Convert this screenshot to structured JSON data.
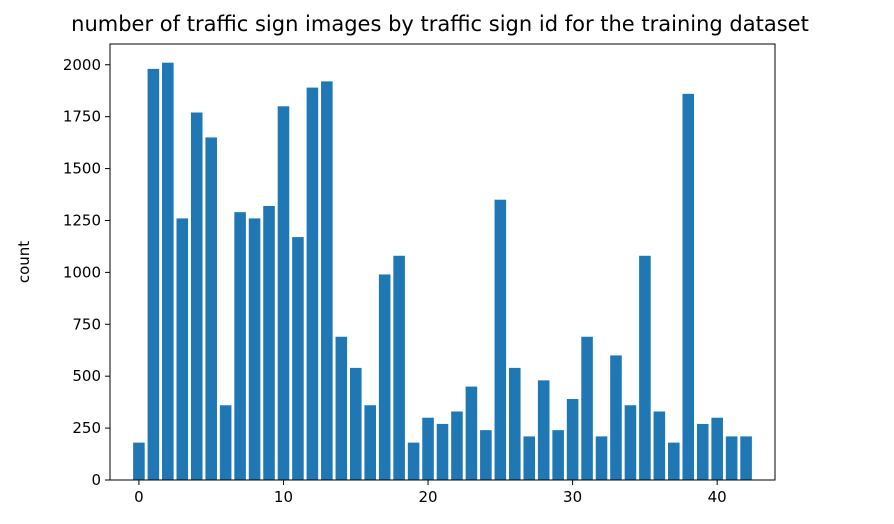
{
  "chart_data": {
    "type": "bar",
    "title": "number of traffic sign images by traffic sign id for the training dataset",
    "xlabel": "",
    "ylabel": "count",
    "xlim": [
      -2,
      44
    ],
    "ylim": [
      0,
      2100
    ],
    "xticks": [
      0,
      10,
      20,
      30,
      40
    ],
    "yticks": [
      0,
      250,
      500,
      750,
      1000,
      1250,
      1500,
      1750,
      2000
    ],
    "grid": false,
    "bar_color": "#1f77b4",
    "categories": [
      0,
      1,
      2,
      3,
      4,
      5,
      6,
      7,
      8,
      9,
      10,
      11,
      12,
      13,
      14,
      15,
      16,
      17,
      18,
      19,
      20,
      21,
      22,
      23,
      24,
      25,
      26,
      27,
      28,
      29,
      30,
      31,
      32,
      33,
      34,
      35,
      36,
      37,
      38,
      39,
      40,
      41,
      42
    ],
    "values": [
      180,
      1980,
      2010,
      1260,
      1770,
      1650,
      360,
      1290,
      1260,
      1320,
      1800,
      1170,
      1890,
      1920,
      690,
      540,
      360,
      990,
      1080,
      180,
      300,
      270,
      330,
      450,
      240,
      1350,
      540,
      210,
      480,
      240,
      390,
      690,
      210,
      600,
      360,
      1080,
      330,
      180,
      1860,
      270,
      300,
      210,
      210
    ]
  }
}
